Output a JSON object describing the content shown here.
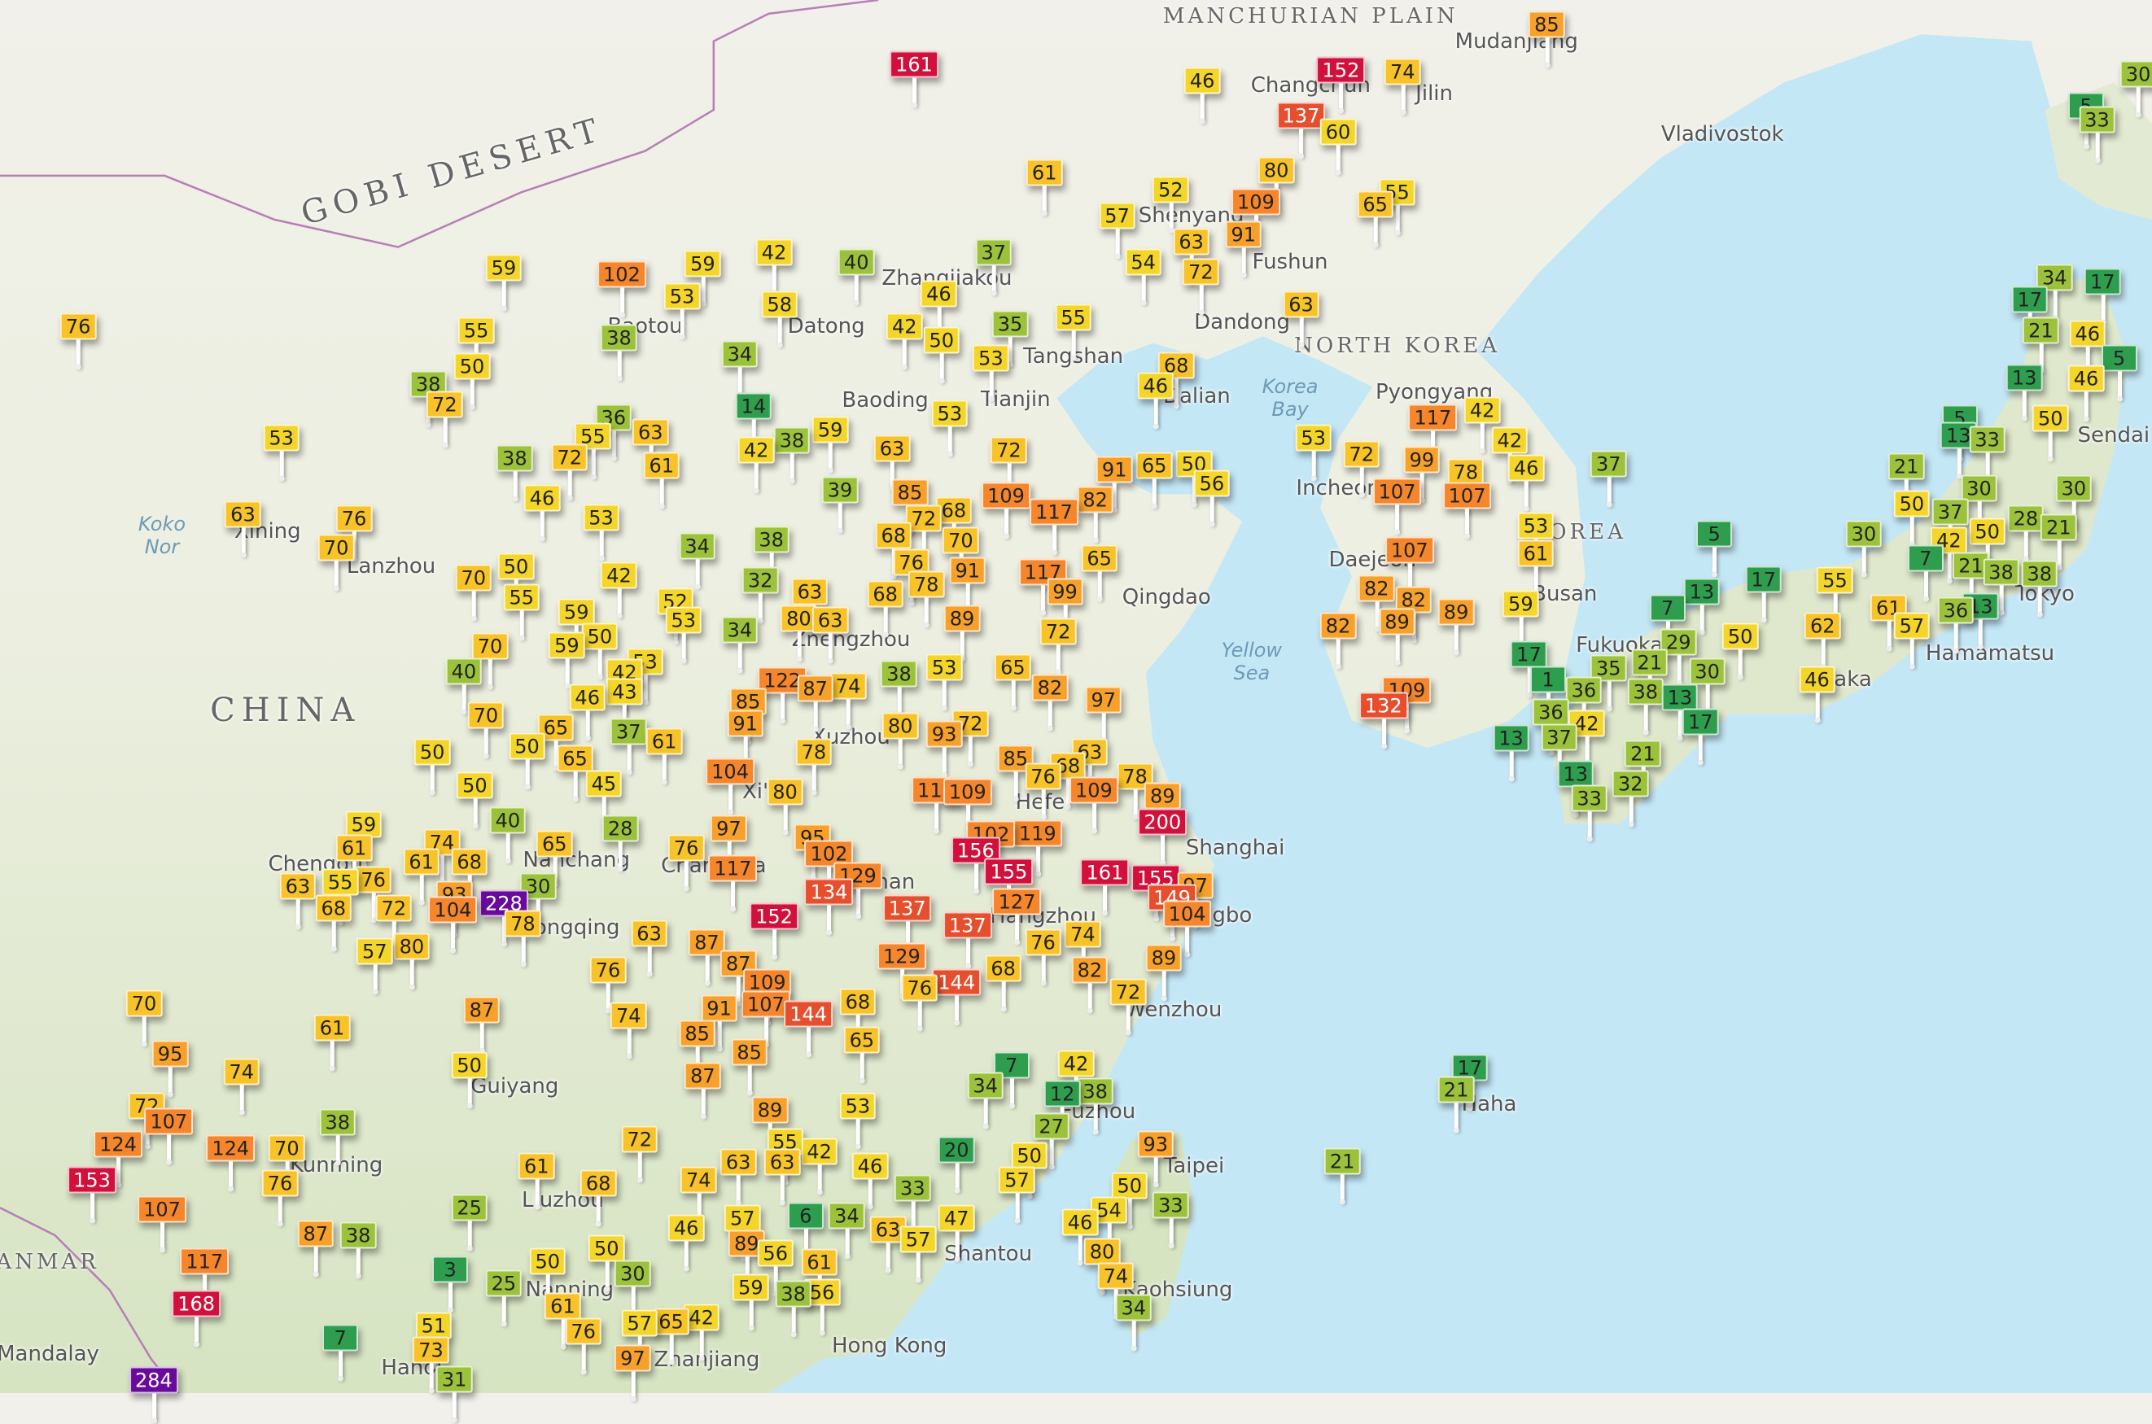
{
  "map": {
    "colors": {
      "land_north": "#f1f0ea",
      "land_south": "#dce6c8",
      "sea": "#c4e7f6",
      "border": "#b77fb6"
    },
    "aqi_colors": [
      {
        "max": 20,
        "color": "#2e9e4e"
      },
      {
        "max": 40,
        "color": "#9bc23a"
      },
      {
        "max": 60,
        "color": "#f4d52a"
      },
      {
        "max": 80,
        "color": "#f7c328"
      },
      {
        "max": 100,
        "color": "#f7a02a"
      },
      {
        "max": 130,
        "color": "#f5862c"
      },
      {
        "max": 150,
        "color": "#e64f2e"
      },
      {
        "max": 200,
        "color": "#d1113b"
      },
      {
        "max": 999,
        "color": "#6a0a9c"
      }
    ],
    "labels": [
      "GOBI DESERT",
      "CHINA",
      "NORTH KOREA",
      "KOREA",
      "Korea Bay",
      "Yellow Sea",
      "Koko Nor",
      "MANCHURIAN PLAIN",
      "Mudanjiang",
      "Changchun",
      "Jilin",
      "Vladivostok",
      "Shenyang",
      "Fushun",
      "Dandong",
      "Pyongyang",
      "Dalian",
      "Tangshan",
      "Tianjin",
      "Baoding",
      "Datong",
      "Zhangjiakou",
      "Baotou",
      "Lanzhou",
      "Xining",
      "Qingdao",
      "Incheon",
      "Daejeon",
      "Busan",
      "Zhengzhou",
      "Xuzhou",
      "Xi'an",
      "Shanghai",
      "Ningbo",
      "Hangzhou",
      "Wenzhou",
      "Fuzhou",
      "Taipei",
      "Nanchang",
      "Changsha",
      "Wuhan",
      "Hefei",
      "Chongqing",
      "Chengdu",
      "Guiyang",
      "Kunming",
      "Liuzhou",
      "Nanning",
      "Shantou",
      "Hong Kong",
      "Zhanjiang",
      "Kaohsiung",
      "Naha",
      "Osaka",
      "Hamamatsu",
      "Tokyo",
      "Sendai",
      "Fukuoka",
      "MYANMAR",
      "Mandalay",
      "Hanoi"
    ],
    "markers": [
      161,
      152,
      74,
      85,
      46,
      137,
      60,
      80,
      109,
      65,
      55,
      61,
      52,
      57,
      63,
      54,
      72,
      91,
      63,
      59,
      102,
      59,
      42,
      40,
      37,
      53,
      58,
      46,
      55,
      76,
      38,
      55,
      50,
      38,
      72,
      34,
      50,
      53,
      35,
      42,
      68,
      46,
      14,
      53,
      53,
      36,
      63,
      55,
      42,
      38,
      59,
      38,
      72,
      61,
      63,
      72,
      50,
      56,
      65,
      91,
      53,
      72,
      117,
      42,
      42,
      46,
      37,
      107,
      107,
      78,
      99,
      46,
      39,
      85,
      109,
      117,
      82,
      63,
      76,
      70,
      53,
      34,
      38,
      68,
      72,
      68,
      70,
      53,
      61,
      5,
      70,
      50,
      42,
      76,
      91,
      117,
      99,
      65,
      63,
      68,
      78,
      32,
      55,
      52,
      53,
      59,
      82,
      107,
      82,
      89,
      59,
      82,
      89,
      80,
      63,
      89,
      72,
      34,
      70,
      59,
      50,
      40,
      53,
      42,
      43,
      46,
      70,
      65,
      85,
      122,
      87,
      74,
      38,
      53,
      65,
      82,
      97,
      91,
      132,
      109,
      50,
      50,
      65,
      37,
      61,
      80,
      93,
      72,
      78,
      104,
      80,
      112,
      109,
      85,
      76,
      63,
      68,
      109,
      78,
      89,
      200,
      50,
      45,
      59,
      40,
      65,
      28,
      76,
      97,
      117,
      95,
      102,
      129,
      134,
      156,
      119,
      102,
      155,
      161,
      155,
      97,
      149,
      104,
      127,
      137,
      152,
      137,
      61,
      74,
      61,
      68,
      63,
      55,
      76,
      93,
      104,
      228,
      30,
      68,
      72,
      78,
      57,
      80,
      63,
      87,
      87,
      129,
      74,
      76,
      82,
      72,
      89,
      68,
      76,
      109,
      144,
      76,
      68,
      91,
      107,
      144,
      85,
      85,
      65,
      87,
      74,
      70,
      61,
      95,
      74,
      7,
      42,
      34,
      12,
      38,
      50,
      87,
      89,
      53,
      27,
      72,
      107,
      124,
      124,
      70,
      38,
      72,
      55,
      42,
      63,
      63,
      46,
      20,
      93,
      50,
      76,
      153,
      61,
      68,
      74,
      33,
      57,
      50,
      33,
      54,
      46,
      107,
      25,
      46,
      57,
      6,
      34,
      63,
      47,
      57,
      87,
      38,
      89,
      56,
      61,
      80,
      117,
      50,
      50,
      30,
      3,
      25,
      59,
      38,
      56,
      74,
      168,
      61,
      34,
      51,
      76,
      57,
      65,
      42,
      7,
      73,
      97,
      284,
      31,
      21,
      21,
      17,
      13,
      17,
      1,
      36,
      42,
      36,
      37,
      35,
      21,
      38,
      13,
      29,
      7,
      13,
      17,
      55,
      50,
      30,
      17,
      21,
      32,
      33,
      13,
      62,
      61,
      57,
      46,
      36,
      38,
      38,
      5,
      33,
      34,
      17,
      17,
      21,
      46,
      5,
      13,
      46,
      50,
      5,
      13,
      33,
      21,
      30,
      30,
      50,
      37,
      50,
      30,
      28,
      21,
      42,
      7,
      21,
      13,
      30
    ]
  }
}
